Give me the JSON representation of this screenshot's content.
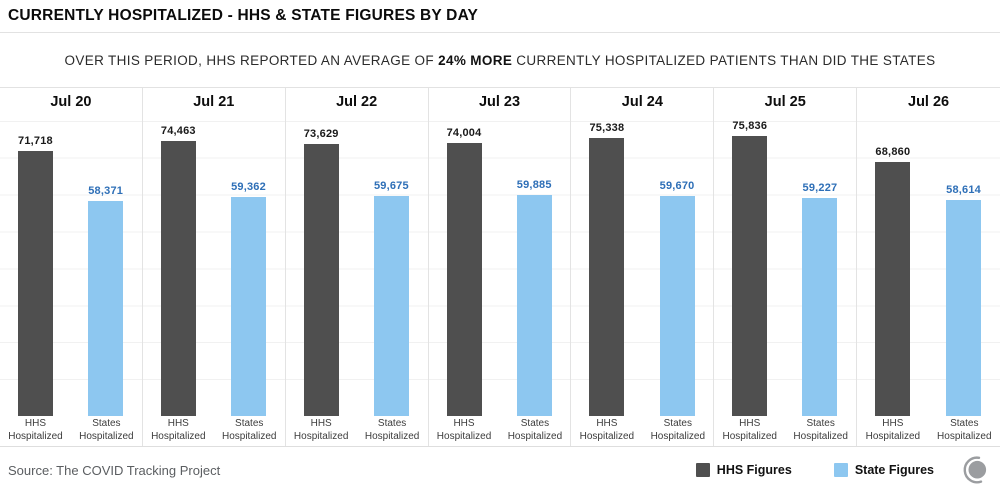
{
  "header": {
    "title": "CURRENTLY HOSPITALIZED - HHS & STATE FIGURES BY DAY"
  },
  "subtitle": {
    "prefix": "OVER THIS PERIOD, HHS REPORTED AN AVERAGE OF ",
    "highlight": "24% MORE",
    "suffix": " CURRENTLY HOSPITALIZED PATIENTS THAN DID THE STATES"
  },
  "chart_data": {
    "type": "bar",
    "categories": [
      "Jul 20",
      "Jul 21",
      "Jul 22",
      "Jul 23",
      "Jul 24",
      "Jul 25",
      "Jul 26"
    ],
    "series": [
      {
        "name": "HHS Figures",
        "axis_label_line1": "HHS",
        "axis_label_line2": "Hospitalized",
        "color": "#4f4f4f",
        "value_label_color": "#1a1a1a",
        "values": [
          71718,
          74463,
          73629,
          74004,
          75338,
          75836,
          68860
        ]
      },
      {
        "name": "State Figures",
        "axis_label_line1": "States",
        "axis_label_line2": "Hospitalized",
        "color": "#8dc7f0",
        "value_label_color": "#2e6fb7",
        "values": [
          58371,
          59362,
          59675,
          59885,
          59670,
          59227,
          58614
        ]
      }
    ],
    "ylim": [
      0,
      89160
    ],
    "gridline_interval": 10000,
    "grid": "horizontal",
    "value_labels_shown": true,
    "legend_position": "bottom-right",
    "title": "CURRENTLY HOSPITALIZED - HHS & STATE FIGURES BY DAY",
    "xlabel": "",
    "ylabel": ""
  },
  "footer": {
    "source": "Source: The COVID Tracking Project",
    "legend": [
      {
        "label": "HHS Figures",
        "color": "#4f4f4f"
      },
      {
        "label": "State Figures",
        "color": "#8dc7f0"
      }
    ],
    "logo_color": "#9b9da0"
  }
}
